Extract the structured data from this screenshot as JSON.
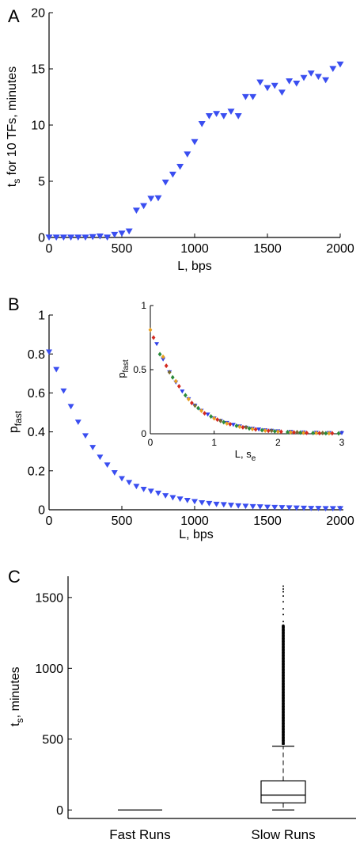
{
  "chart_data": [
    {
      "panel_label": "A",
      "type": "scatter",
      "xlabel": "L, bps",
      "ylabel": {
        "main": "t",
        "sub": "s",
        "rest": " for 10 TFs, minutes"
      },
      "xlim": [
        0,
        2000
      ],
      "ylim": [
        0,
        20
      ],
      "xticks": [
        "0",
        "500",
        "1000",
        "1500",
        "2000"
      ],
      "yticks": [
        "0",
        "5",
        "10",
        "15",
        "20"
      ],
      "marker_color": "#3a4ef0",
      "series": [
        {
          "x": [
            0,
            50,
            100,
            150,
            200,
            250,
            300,
            350,
            400,
            450,
            500,
            550,
            600,
            650,
            700,
            750,
            800,
            850,
            900,
            950,
            1000,
            1050,
            1100,
            1150,
            1200,
            1250,
            1300,
            1350,
            1400,
            1450,
            1500,
            1550,
            1600,
            1650,
            1700,
            1750,
            1800,
            1850,
            1900,
            1950,
            2000
          ],
          "y": [
            0.0,
            0.0,
            0.0,
            0.0,
            0.0,
            0.0,
            0.05,
            0.1,
            0.0,
            0.25,
            0.35,
            0.55,
            2.4,
            2.8,
            3.45,
            3.5,
            4.9,
            5.6,
            6.3,
            7.4,
            8.5,
            10.1,
            10.8,
            11.0,
            10.8,
            11.2,
            10.8,
            12.5,
            12.5,
            13.8,
            13.3,
            13.5,
            12.9,
            13.9,
            13.7,
            14.2,
            14.6,
            14.3,
            14.0,
            15.0,
            15.4
          ]
        }
      ]
    },
    {
      "panel_label": "B",
      "type": "scatter",
      "xlabel": "L, bps",
      "ylabel": {
        "main": "p",
        "sub": "fast"
      },
      "xlim": [
        0,
        2000
      ],
      "ylim": [
        0,
        1
      ],
      "xticks": [
        "0",
        "500",
        "1000",
        "1500",
        "2000"
      ],
      "yticks": [
        "0",
        "0.2",
        "0.4",
        "0.6",
        "0.8",
        "1"
      ],
      "marker_color": "#3a4ef0",
      "series": [
        {
          "x": [
            0,
            50,
            100,
            150,
            200,
            250,
            300,
            350,
            400,
            450,
            500,
            550,
            600,
            650,
            700,
            750,
            800,
            850,
            900,
            950,
            1000,
            1050,
            1100,
            1150,
            1200,
            1250,
            1300,
            1350,
            1400,
            1450,
            1500,
            1550,
            1600,
            1650,
            1700,
            1750,
            1800,
            1850,
            1900,
            1950,
            2000
          ],
          "y": [
            0.81,
            0.72,
            0.61,
            0.53,
            0.45,
            0.38,
            0.32,
            0.27,
            0.23,
            0.19,
            0.16,
            0.14,
            0.12,
            0.105,
            0.095,
            0.085,
            0.072,
            0.062,
            0.055,
            0.048,
            0.042,
            0.036,
            0.032,
            0.028,
            0.026,
            0.023,
            0.02,
            0.018,
            0.016,
            0.015,
            0.013,
            0.012,
            0.011,
            0.01,
            0.009,
            0.008,
            0.007,
            0.007,
            0.006,
            0.006,
            0.006
          ]
        }
      ],
      "inset": {
        "type": "scatter",
        "xlabel": {
          "main": "L, s",
          "sub": "e"
        },
        "ylabel": {
          "main": "p",
          "sub": "fast"
        },
        "xlim": [
          0,
          3
        ],
        "ylim": [
          0,
          1
        ],
        "xticks": [
          "0",
          "1",
          "2",
          "3"
        ],
        "yticks": [
          "0",
          "0.5",
          "1"
        ],
        "series": [
          {
            "color": "#2f3fe8",
            "marker": "triangle-down",
            "x": [
              0.1,
              0.2,
              0.3,
              0.4,
              0.5,
              0.6,
              0.7,
              0.8,
              0.9,
              1.0,
              1.1,
              1.2,
              1.3,
              1.4,
              1.5,
              1.6,
              1.7,
              1.8,
              1.9,
              2.0,
              2.2,
              2.4,
              2.6,
              2.8,
              3.0
            ],
            "y": [
              0.7,
              0.58,
              0.48,
              0.4,
              0.33,
              0.27,
              0.22,
              0.18,
              0.15,
              0.12,
              0.1,
              0.085,
              0.07,
              0.058,
              0.048,
              0.04,
              0.034,
              0.028,
              0.024,
              0.02,
              0.015,
              0.011,
              0.008,
              0.006,
              0.005
            ]
          },
          {
            "color": "#e8a020",
            "marker": "diamond",
            "x": [
              0.0,
              0.2,
              0.4,
              0.6,
              0.8,
              1.0,
              1.2,
              1.4,
              1.6,
              1.8,
              2.0,
              2.2,
              2.4,
              2.6,
              2.8
            ],
            "y": [
              0.81,
              0.6,
              0.41,
              0.27,
              0.18,
              0.12,
              0.08,
              0.055,
              0.037,
              0.025,
              0.017,
              0.012,
              0.008,
              0.006,
              0.004
            ]
          },
          {
            "color": "#d42a20",
            "marker": "diamond",
            "x": [
              0.05,
              0.25,
              0.45,
              0.65,
              0.85,
              1.05,
              1.25,
              1.45,
              1.65,
              1.85,
              2.05,
              2.25,
              2.45,
              2.65,
              2.85
            ],
            "y": [
              0.75,
              0.53,
              0.37,
              0.24,
              0.16,
              0.11,
              0.075,
              0.05,
              0.034,
              0.023,
              0.016,
              0.011,
              0.007,
              0.005,
              0.004
            ]
          },
          {
            "color": "#2a8a3a",
            "marker": "diamond",
            "x": [
              0.15,
              0.35,
              0.55,
              0.75,
              0.95,
              1.15,
              1.35,
              1.55,
              1.75,
              1.95,
              2.15,
              2.35,
              2.55,
              2.75,
              2.95
            ],
            "y": [
              0.62,
              0.44,
              0.3,
              0.2,
              0.135,
              0.09,
              0.062,
              0.042,
              0.028,
              0.019,
              0.013,
              0.009,
              0.006,
              0.004,
              0.003
            ]
          },
          {
            "color": "#7a6a30",
            "marker": "diamond",
            "x": [
              0.3,
              0.7,
              1.1,
              1.5,
              1.9,
              2.3,
              2.7
            ],
            "y": [
              0.48,
              0.22,
              0.1,
              0.05,
              0.024,
              0.012,
              0.006
            ]
          }
        ]
      }
    },
    {
      "panel_label": "C",
      "type": "box",
      "ylabel": {
        "main": "t",
        "sub": "s",
        "rest": ", minutes"
      },
      "ylim": [
        -60,
        1650
      ],
      "yticks": [
        0,
        500,
        1000,
        1500
      ],
      "categories": [
        "Fast Runs",
        "Slow Runs"
      ],
      "boxes": [
        {
          "name": "Fast Runs",
          "min": 0,
          "q1": 0,
          "median": 0,
          "q3": 0,
          "max": 0,
          "outliers": []
        },
        {
          "name": "Slow Runs",
          "min": 0,
          "q1": 50,
          "median": 105,
          "q3": 205,
          "max": 450,
          "outliers": [
            1580,
            1560,
            1540,
            1510,
            1470,
            1420,
            1380,
            1330,
            1300,
            1290,
            1270,
            1250,
            1230,
            1210,
            1190,
            1170,
            1150,
            1130,
            1110,
            1090,
            1070,
            1050,
            1030,
            1010,
            990,
            970,
            950,
            930,
            910,
            890,
            870,
            850,
            830,
            810,
            790,
            770,
            750,
            730,
            710,
            690,
            670,
            650,
            630,
            610,
            590,
            570,
            550,
            530,
            510,
            490,
            470
          ]
        }
      ]
    }
  ]
}
